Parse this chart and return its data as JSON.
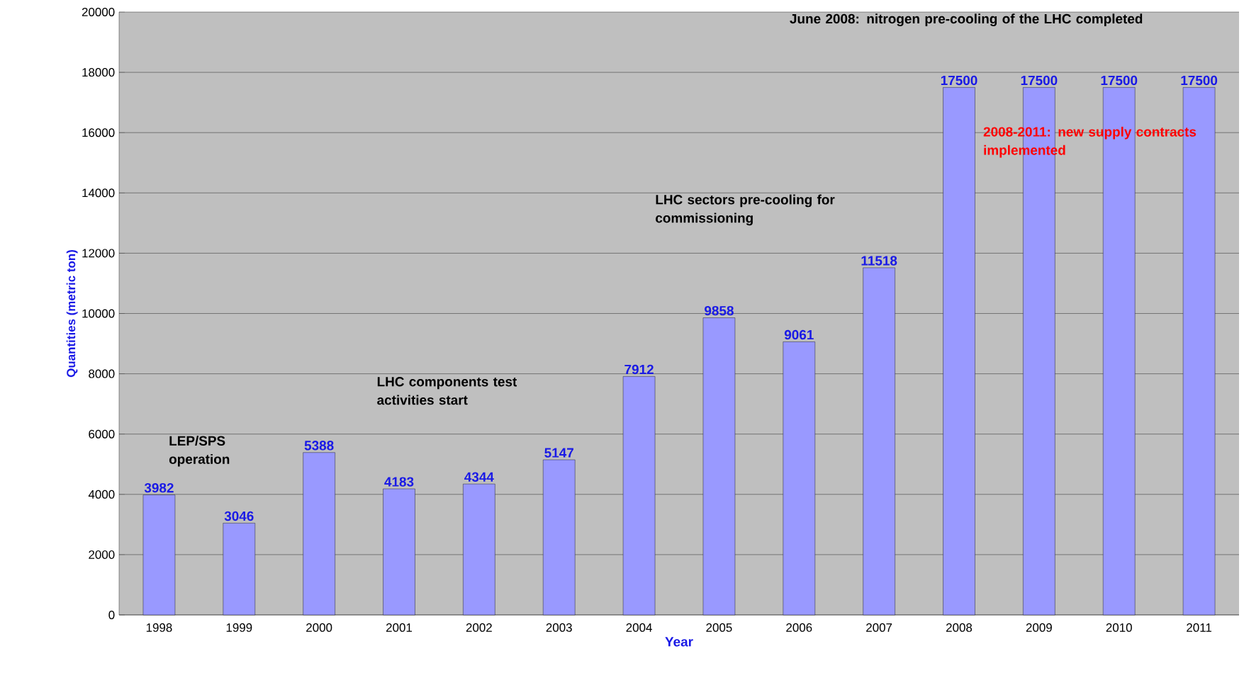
{
  "chart_data": {
    "type": "bar",
    "xlabel": "Year",
    "ylabel": "Quantities (metric ton)",
    "categories": [
      "1998",
      "1999",
      "2000",
      "2001",
      "2002",
      "2003",
      "2004",
      "2005",
      "2006",
      "2007",
      "2008",
      "2009",
      "2010",
      "2011"
    ],
    "values": [
      3982,
      3046,
      5388,
      4183,
      4344,
      5147,
      7912,
      9858,
      9061,
      11518,
      17500,
      17500,
      17500,
      17500
    ],
    "color": "#9999ff",
    "data_labels": true,
    "grid": "y",
    "ylim": [
      0,
      20000
    ],
    "yticks": [
      0,
      2000,
      4000,
      6000,
      8000,
      10000,
      12000,
      14000,
      16000,
      18000,
      20000
    ],
    "annotations": [
      "LEP/SPS operation",
      "LHC components test activities start",
      "LHC sectors pre-cooling for commissioning",
      "June 2008: nitrogen pre-cooling of the LHC completed",
      "2008-2011: new supply contracts implemented"
    ]
  }
}
